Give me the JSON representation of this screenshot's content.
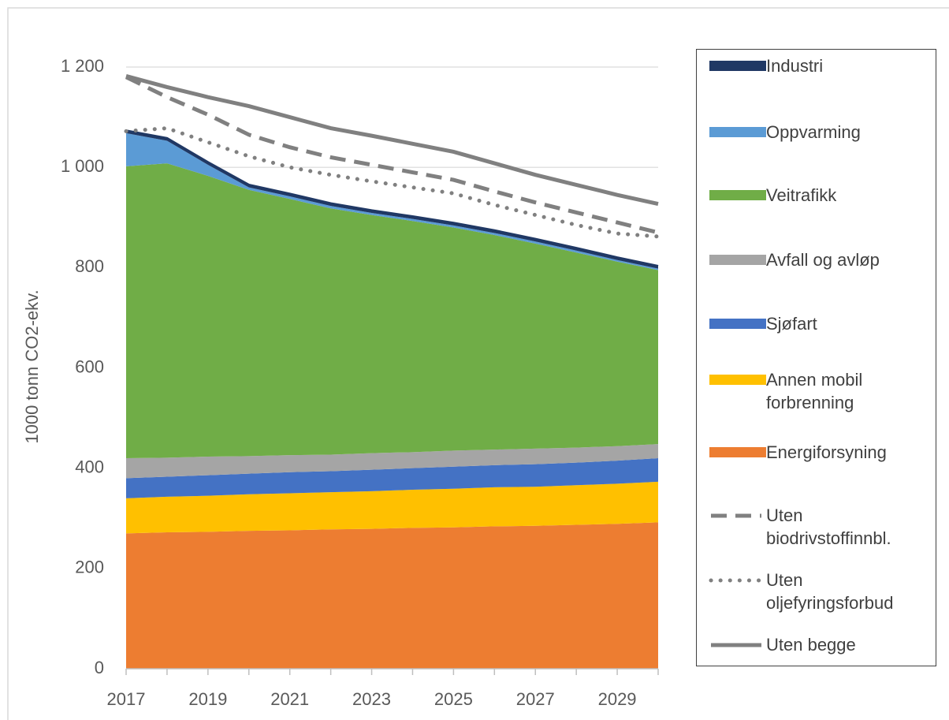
{
  "chart_data": {
    "type": "stacked_area",
    "y_label": "1000 tonn CO2-ekv.",
    "x": [
      2017,
      2018,
      2019,
      2020,
      2021,
      2022,
      2023,
      2024,
      2025,
      2026,
      2027,
      2028,
      2029,
      2030
    ],
    "xlim": [
      2017,
      2030
    ],
    "xticks": [
      2017,
      2019,
      2021,
      2023,
      2025,
      2027,
      2029
    ],
    "ylim": [
      0,
      1200
    ],
    "yticks": [
      0,
      200,
      400,
      600,
      800,
      {
        "value": 1000,
        "label": "1 000"
      },
      {
        "value": 1200,
        "label": "1 200"
      }
    ],
    "grid": true,
    "legend": "right",
    "series": [
      {
        "name": "Energiforsyning",
        "color": "#ed7d31",
        "kind": "area",
        "values": [
          270,
          272,
          273,
          275,
          276,
          278,
          279,
          281,
          282,
          284,
          285,
          287,
          289,
          292
        ]
      },
      {
        "name": "Annen mobil forbrenning",
        "color": "#ffc000",
        "kind": "area",
        "values": [
          70,
          71,
          72,
          73,
          74,
          74,
          75,
          76,
          77,
          78,
          78,
          79,
          80,
          81
        ]
      },
      {
        "name": "Sjøfart",
        "color": "#4472c4",
        "kind": "area",
        "values": [
          40,
          40,
          41,
          41,
          42,
          42,
          43,
          43,
          44,
          44,
          45,
          45,
          46,
          47
        ]
      },
      {
        "name": "Avfall og avløp",
        "color": "#a5a5a5",
        "kind": "area",
        "values": [
          40,
          38,
          37,
          35,
          34,
          33,
          33,
          32,
          32,
          31,
          31,
          30,
          29,
          28
        ]
      },
      {
        "name": "Veitrafikk",
        "color": "#70ad47",
        "kind": "area",
        "values": [
          582,
          587,
          560,
          531,
          511,
          491,
          475,
          461,
          445,
          428,
          409,
          389,
          368,
          347
        ]
      },
      {
        "name": "Oppvarming",
        "color": "#5b9bd5",
        "kind": "area",
        "values": [
          66,
          45,
          22,
          5,
          5,
          5,
          4,
          4,
          4,
          4,
          4,
          4,
          3,
          3
        ]
      },
      {
        "name": "Industri",
        "color": "#203864",
        "kind": "area",
        "values": [
          5,
          5,
          5,
          5,
          5,
          5,
          5,
          5,
          5,
          5,
          5,
          5,
          5,
          5
        ]
      },
      {
        "name": "Uten biodrivstoffinnbl.",
        "color": "#808080",
        "kind": "line",
        "style": "dashed",
        "values": [
          1180,
          1140,
          1105,
          1065,
          1040,
          1020,
          1005,
          990,
          975,
          952,
          930,
          910,
          890,
          870
        ]
      },
      {
        "name": "Uten oljefyringsforbud",
        "color": "#808080",
        "kind": "line",
        "style": "dotted",
        "values": [
          1072,
          1078,
          1050,
          1022,
          1000,
          985,
          972,
          960,
          948,
          925,
          905,
          885,
          868,
          862
        ]
      },
      {
        "name": "Uten begge",
        "color": "#808080",
        "kind": "line",
        "style": "solid",
        "values": [
          1182,
          1160,
          1140,
          1122,
          1100,
          1078,
          1063,
          1047,
          1031,
          1008,
          985,
          965,
          945,
          927
        ]
      }
    ]
  }
}
